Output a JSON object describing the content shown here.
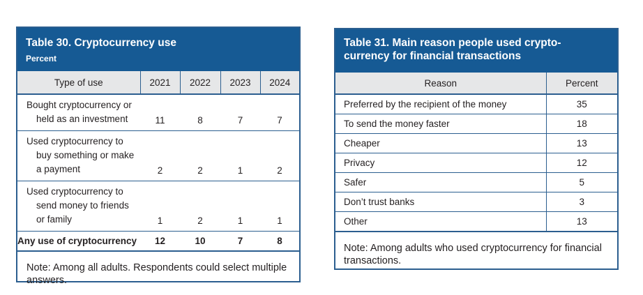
{
  "table30": {
    "title": "Table 30. Cryptocurrency use",
    "subtitle": "Percent",
    "headers": [
      "Type of use",
      "2021",
      "2022",
      "2023",
      "2024"
    ],
    "rows": [
      {
        "lines": [
          "Bought cryptocurrency or",
          "held as an investment"
        ],
        "values": [
          "11",
          "8",
          "7",
          "7"
        ]
      },
      {
        "lines": [
          "Used cryptocurrency to",
          "buy something or make",
          "a payment"
        ],
        "values": [
          "2",
          "2",
          "1",
          "2"
        ]
      },
      {
        "lines": [
          "Used cryptocurrency to",
          "send money to friends",
          "or family"
        ],
        "values": [
          "1",
          "2",
          "1",
          "1"
        ]
      }
    ],
    "total": {
      "label": "Any use of cryptocurrency",
      "values": [
        "12",
        "10",
        "7",
        "8"
      ]
    },
    "note": "Note: Among all adults. Respondents could select multiple answers."
  },
  "table31": {
    "title": "Table 31. Main reason people used crypto-currency for financial transactions",
    "title_line1": "Table 31. Main reason people used crypto-",
    "title_line2": "currency for financial transactions",
    "headers": [
      "Reason",
      "Percent"
    ],
    "rows": [
      {
        "reason": "Preferred by the recipient of the money",
        "percent": "35"
      },
      {
        "reason": "To send the money faster",
        "percent": "18"
      },
      {
        "reason": "Cheaper",
        "percent": "13"
      },
      {
        "reason": "Privacy",
        "percent": "12"
      },
      {
        "reason": "Safer",
        "percent": "5"
      },
      {
        "reason": "Don’t trust banks",
        "percent": "3"
      },
      {
        "reason": "Other",
        "percent": "13"
      }
    ],
    "note": "Note: Among adults who used cryptocurrency for financial transactions."
  },
  "colors": {
    "header_blue": "#165a94",
    "border_blue": "#2b5e8f",
    "header_gray": "#e6e7e8"
  }
}
